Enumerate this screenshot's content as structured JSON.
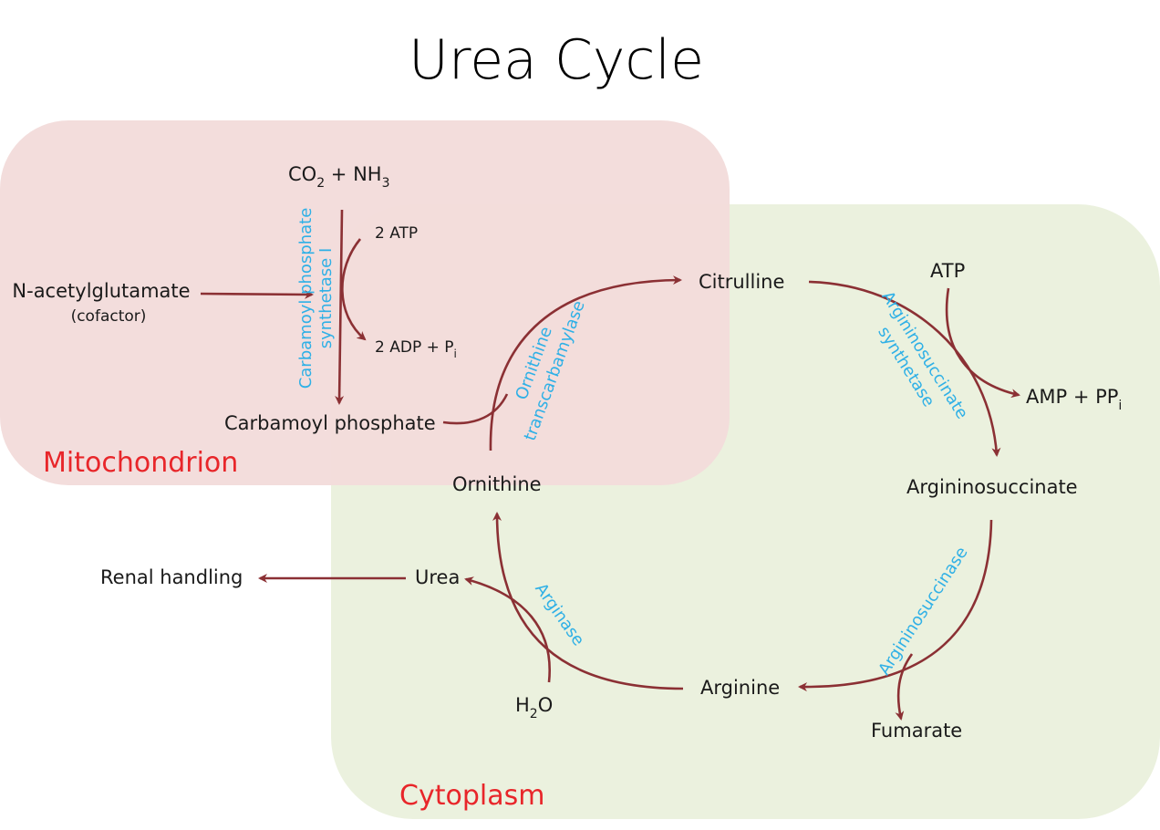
{
  "title": "Urea Cycle",
  "regions": {
    "mitochondrion": "Mitochondrion",
    "cytoplasm": "Cytoplasm"
  },
  "colors": {
    "mitochondrion_fill": "#f2dcdb",
    "cytoplasm_fill": "#ebf1de",
    "arrow": "#8b3034",
    "enzyme_text": "#2fb0e6",
    "region_text": "#e8262a"
  },
  "metabolites": {
    "co2_nh3": {
      "co": "CO",
      "co_sub": "2",
      "plus_nh": " + NH",
      "nh_sub": "3"
    },
    "atp_in": "2 ATP",
    "adp_out": {
      "main": "2 ADP + P",
      "sub": "i"
    },
    "nag": "N-acetylglutamate",
    "nag_note": "(cofactor)",
    "carbamoyl_phosphate": "Carbamoyl phosphate",
    "citrulline": "Citrulline",
    "ornithine": "Ornithine",
    "atp": "ATP",
    "amp_ppi": {
      "main": "AMP + PP",
      "sub": "i"
    },
    "argininosuccinate": "Argininosuccinate",
    "fumarate": "Fumarate",
    "arginine": "Arginine",
    "water": {
      "h": "H",
      "sub": "2",
      "o": "O"
    },
    "urea": "Urea",
    "renal": "Renal handling"
  },
  "enzymes": {
    "cps1_line1": "Carbamoyl phosphate",
    "cps1_line2": "synthetase I",
    "otc_line1": "Ornithine",
    "otc_line2": "transcarbamylase",
    "ass_line1": "Argininosuccinate",
    "ass_line2": "synthetase",
    "asl": "Argininosuccinase",
    "arginase": "Arginase"
  }
}
